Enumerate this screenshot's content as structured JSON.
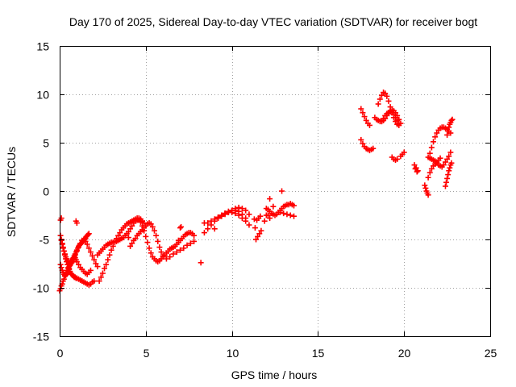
{
  "chart_data": {
    "type": "scatter",
    "title": "Day 170 of 2025, Sidereal Day-to-day VTEC variation (SDTVAR) for receiver bogt",
    "xlabel": "GPS time / hours",
    "ylabel": "SDTVAR / TECUs",
    "xlim": [
      0,
      25
    ],
    "ylim": [
      -15,
      15
    ],
    "xticks": [
      0,
      5,
      10,
      15,
      20,
      25
    ],
    "yticks": [
      -15,
      -10,
      -5,
      0,
      5,
      10,
      15
    ],
    "xtick_labels": [
      "0",
      "5",
      "10",
      "15",
      "20",
      "25"
    ],
    "ytick_labels": [
      "-15",
      "-10",
      "-5",
      "0",
      "5",
      "10",
      "15"
    ],
    "grid": true,
    "marker": "plus",
    "series": [
      {
        "color": "#ff0000",
        "x": [
          0.0,
          0.05,
          0.1,
          0.15,
          0.2,
          0.25,
          0.3,
          0.35,
          0.4,
          0.45,
          0.5,
          0.55,
          0.6,
          0.65,
          0.7,
          0.75,
          0.8,
          0.85,
          0.9,
          0.95,
          1.0,
          1.05,
          1.1,
          1.15,
          1.2,
          1.25,
          1.3,
          1.35,
          1.4,
          1.45,
          1.5,
          1.55,
          1.6,
          1.65,
          1.7,
          0.05,
          0.1,
          0.15,
          0.2,
          0.25,
          0.3,
          0.35,
          0.4,
          0.45,
          0.5,
          0.55,
          0.6,
          0.65,
          0.7,
          0.75,
          0.8,
          0.85,
          0.9,
          0.95,
          1.0,
          1.1,
          1.2,
          1.3,
          1.4,
          1.5,
          1.6,
          1.7,
          1.8,
          1.9,
          2.0,
          0.05,
          0.1,
          0.15,
          0.2,
          0.25,
          0.3,
          0.35,
          0.4,
          0.45,
          0.5,
          0.55,
          0.6,
          0.65,
          0.7,
          0.75,
          0.8,
          0.85,
          0.9,
          0.95,
          1.0,
          1.1,
          1.2,
          1.3,
          1.4,
          1.5,
          1.6,
          1.7,
          1.8,
          0.1,
          0.15,
          0.2,
          0.25,
          0.3,
          0.35,
          0.4,
          0.45,
          0.5,
          0.55,
          0.6,
          0.65,
          0.7,
          0.75,
          0.8,
          0.85,
          0.9,
          1.0,
          1.1,
          1.2,
          1.3,
          1.4,
          1.5,
          1.6,
          1.7,
          1.8,
          1.9,
          2.0,
          2.1,
          2.2,
          0.05,
          0.1,
          0.95,
          1.0,
          2.3,
          2.4,
          2.5,
          2.6,
          2.7,
          2.8,
          2.9,
          3.0,
          3.1,
          3.2,
          3.3,
          3.4,
          3.5,
          3.6,
          3.7,
          3.8,
          3.9,
          4.0,
          4.1,
          4.2,
          4.3,
          4.4,
          4.5,
          4.6,
          4.7,
          4.8,
          4.9,
          2.2,
          2.3,
          2.4,
          2.5,
          2.6,
          2.7,
          2.8,
          2.9,
          3.0,
          3.1,
          3.2,
          3.3,
          3.4,
          3.5,
          3.6,
          3.7,
          3.8,
          3.9,
          4.0,
          4.1,
          4.2,
          4.3,
          4.4,
          4.5,
          4.6,
          4.7,
          4.8,
          4.9,
          5.0,
          5.1,
          5.2,
          5.3,
          5.4,
          5.5,
          5.6,
          5.7,
          5.8,
          5.9,
          6.0,
          6.1,
          6.2,
          6.3,
          6.4,
          6.5,
          6.6,
          6.7,
          6.8,
          6.9,
          7.0,
          7.1,
          7.2,
          7.3,
          7.4,
          7.5,
          7.6,
          7.7,
          7.8,
          4.0,
          4.1,
          4.2,
          4.3,
          4.4,
          4.5,
          4.6,
          4.7,
          4.8,
          4.9,
          5.0,
          5.1,
          5.2,
          5.3,
          5.4,
          5.5,
          5.6,
          5.7,
          5.8,
          5.9,
          6.0,
          6.2,
          6.4,
          6.6,
          6.8,
          7.0,
          7.2,
          7.4,
          7.6,
          7.8,
          6.9,
          7.0,
          7.05,
          8.2,
          8.4,
          8.6,
          8.8,
          9.0,
          9.2,
          9.4,
          9.6,
          9.8,
          10.0,
          10.2,
          10.4,
          10.6,
          10.8,
          8.4,
          8.6,
          8.8,
          9.0,
          9.2,
          9.4,
          9.6,
          9.8,
          10.0,
          10.2,
          10.4,
          10.6,
          10.8,
          11.0,
          9.0,
          9.2,
          9.4,
          9.6,
          9.8,
          10.0,
          10.2,
          10.4,
          10.6,
          10.8,
          11.0,
          11.3,
          11.4,
          11.5,
          11.6,
          11.7,
          11.35,
          11.45,
          11.55,
          11.65,
          12.0,
          12.1,
          12.2,
          11.9,
          12.0,
          12.1,
          12.2,
          12.3,
          12.4,
          12.5,
          12.6,
          12.7,
          12.8,
          12.9,
          13.0,
          13.1,
          13.2,
          13.3,
          13.4,
          13.5,
          13.6,
          12.8,
          13.0,
          13.2,
          13.4,
          13.6,
          12.2,
          12.4,
          12.9,
          17.5,
          17.6,
          17.7,
          17.8,
          17.9,
          18.0,
          17.5,
          17.6,
          17.7,
          17.8,
          17.9,
          18.0,
          18.1,
          18.2,
          18.5,
          18.6,
          18.7,
          18.8,
          18.9,
          19.0,
          19.1,
          19.2,
          19.3,
          19.4,
          19.5,
          19.6,
          19.7,
          18.7,
          18.8,
          18.9,
          19.0,
          19.1,
          19.2,
          19.3,
          19.4,
          19.5,
          19.6,
          19.7,
          18.3,
          18.4,
          18.5,
          18.6,
          18.7,
          18.8,
          18.9,
          19.0,
          19.1,
          19.2,
          19.3,
          19.4,
          19.5,
          19.6,
          19.7,
          19.8,
          19.8,
          19.9,
          20.0,
          19.3,
          19.4,
          19.5,
          19.6,
          20.6,
          20.7,
          20.8,
          20.65,
          20.75,
          21.2,
          21.25,
          21.3,
          21.35,
          21.4,
          21.4,
          21.5,
          21.6,
          21.7,
          21.8,
          21.9,
          22.0,
          22.1,
          21.5,
          21.6,
          21.7,
          21.8,
          21.9,
          22.0,
          22.1,
          22.2,
          22.3,
          22.4,
          22.5,
          22.6,
          22.7,
          21.4,
          21.5,
          21.6,
          21.7,
          21.8,
          21.9,
          22.0,
          22.1,
          22.2,
          22.3,
          22.4,
          22.5,
          22.6,
          22.7,
          22.4,
          22.45,
          22.5,
          22.55,
          22.6,
          22.65,
          22.7,
          22.75,
          22.5,
          22.55,
          22.6,
          22.65,
          22.7,
          22.75,
          22.8
        ],
        "y": [
          -10.3,
          -10.1,
          -9.8,
          -9.6,
          -9.3,
          -9.1,
          -8.8,
          -8.6,
          -8.4,
          -8.2,
          -8.0,
          -7.8,
          -7.6,
          -7.5,
          -7.3,
          -7.1,
          -6.9,
          -6.7,
          -6.5,
          -6.3,
          -6.1,
          -5.9,
          -5.7,
          -5.6,
          -5.5,
          -5.4,
          -5.3,
          -5.2,
          -5.1,
          -5.0,
          -4.9,
          -4.7,
          -4.6,
          -4.5,
          -4.4,
          -4.6,
          -5.0,
          -5.4,
          -5.8,
          -6.2,
          -6.6,
          -7.0,
          -7.3,
          -7.6,
          -7.9,
          -8.1,
          -8.3,
          -8.5,
          -8.6,
          -8.7,
          -8.8,
          -8.9,
          -8.9,
          -9.0,
          -9.0,
          -9.1,
          -9.2,
          -9.3,
          -9.4,
          -9.5,
          -9.6,
          -9.7,
          -9.6,
          -9.4,
          -9.3,
          -7.6,
          -7.9,
          -8.2,
          -8.4,
          -8.6,
          -8.7,
          -8.7,
          -8.6,
          -8.5,
          -8.3,
          -8.0,
          -7.7,
          -7.4,
          -7.2,
          -7.0,
          -6.9,
          -6.8,
          -6.9,
          -7.1,
          -7.3,
          -7.6,
          -7.9,
          -8.1,
          -8.3,
          -8.5,
          -8.6,
          -8.4,
          -8.2,
          -5.1,
          -5.5,
          -5.9,
          -6.2,
          -6.5,
          -6.8,
          -7.0,
          -7.2,
          -7.3,
          -7.4,
          -7.5,
          -7.5,
          -7.4,
          -7.3,
          -7.1,
          -6.9,
          -6.6,
          -6.2,
          -5.8,
          -5.4,
          -5.1,
          -5.0,
          -5.2,
          -5.5,
          -5.9,
          -6.3,
          -6.7,
          -7.1,
          -7.5,
          -7.8,
          -3.0,
          -2.8,
          -3.1,
          -3.3,
          -9.3,
          -8.9,
          -8.5,
          -8.0,
          -7.6,
          -7.1,
          -6.6,
          -6.1,
          -5.7,
          -5.3,
          -4.9,
          -4.6,
          -4.3,
          -4.0,
          -3.8,
          -3.6,
          -3.4,
          -3.3,
          -3.2,
          -3.1,
          -3.0,
          -2.9,
          -2.8,
          -2.8,
          -2.9,
          -3.1,
          -3.3,
          -6.6,
          -6.4,
          -6.2,
          -6.0,
          -5.8,
          -5.6,
          -5.5,
          -5.4,
          -5.3,
          -5.3,
          -5.2,
          -5.2,
          -5.1,
          -5.0,
          -4.9,
          -4.8,
          -4.6,
          -4.4,
          -4.2,
          -3.9,
          -3.6,
          -3.3,
          -3.1,
          -3.0,
          -3.0,
          -3.2,
          -3.6,
          -4.1,
          -4.7,
          -5.3,
          -5.9,
          -6.4,
          -6.8,
          -7.0,
          -7.2,
          -7.3,
          -7.2,
          -7.0,
          -6.8,
          -6.6,
          -6.4,
          -6.2,
          -6.0,
          -5.9,
          -5.8,
          -5.7,
          -5.5,
          -5.3,
          -5.1,
          -4.9,
          -4.7,
          -4.5,
          -4.4,
          -4.3,
          -4.3,
          -4.4,
          -4.6,
          -4.8,
          -5.7,
          -5.4,
          -5.1,
          -4.9,
          -4.6,
          -4.4,
          -4.2,
          -4.0,
          -3.8,
          -3.6,
          -3.4,
          -3.3,
          -3.4,
          -3.7,
          -4.1,
          -4.6,
          -5.2,
          -5.8,
          -6.3,
          -6.7,
          -7.0,
          -6.8,
          -6.5,
          -6.3,
          -6.1,
          -5.9,
          -5.6,
          -5.4,
          -5.2,
          -5.1,
          -3.8,
          -3.7,
          -7.4,
          -4.3,
          -3.9,
          -3.5,
          -3.1,
          -2.8,
          -2.5,
          -2.3,
          -2.1,
          -2.0,
          -2.0,
          -2.1,
          -2.4,
          -2.8,
          -3.3,
          -3.3,
          -3.1,
          -2.9,
          -2.7,
          -2.5,
          -2.3,
          -2.2,
          -2.2,
          -2.3,
          -2.5,
          -2.8,
          -3.1,
          -3.5,
          -3.9,
          -2.8,
          -2.6,
          -2.4,
          -2.2,
          -2.0,
          -1.8,
          -1.7,
          -1.8,
          -2.0,
          -2.4,
          -2.9,
          -5.0,
          -4.7,
          -4.4,
          -4.1,
          -3.8,
          -3.0,
          -2.8,
          -2.6,
          -2.5,
          -2.5,
          -2.8,
          -3.1,
          -1.8,
          -1.9,
          -2.1,
          -2.3,
          -2.4,
          -2.5,
          -2.4,
          -2.2,
          -2.0,
          -1.8,
          -1.6,
          -1.5,
          -1.4,
          -1.4,
          -1.3,
          -1.4,
          -1.5,
          -2.2,
          -2.3,
          -2.4,
          -2.5,
          -2.6,
          -0.8,
          -1.6,
          0.0,
          8.5,
          8.1,
          7.7,
          7.3,
          7.0,
          6.8,
          5.3,
          4.9,
          4.6,
          4.4,
          4.3,
          4.2,
          4.3,
          4.4,
          9.0,
          9.5,
          9.9,
          10.2,
          10.1,
          9.8,
          9.3,
          8.7,
          8.1,
          7.6,
          7.2,
          6.9,
          6.8,
          7.2,
          7.5,
          7.8,
          8.0,
          8.1,
          8.2,
          8.1,
          7.9,
          7.6,
          7.3,
          7.0,
          7.6,
          7.4,
          7.3,
          7.2,
          7.2,
          7.3,
          7.5,
          7.8,
          8.1,
          8.3,
          8.4,
          8.3,
          8.1,
          7.8,
          7.4,
          7.0,
          3.6,
          3.8,
          4.0,
          3.5,
          3.3,
          3.2,
          3.3,
          2.7,
          2.4,
          2.1,
          2.3,
          2.0,
          0.6,
          0.3,
          0.0,
          -0.2,
          -0.4,
          1.4,
          1.9,
          2.3,
          2.6,
          2.8,
          3.0,
          3.2,
          3.4,
          3.9,
          4.5,
          5.1,
          5.6,
          6.0,
          6.3,
          6.5,
          6.6,
          6.6,
          6.5,
          6.4,
          6.2,
          6.0,
          3.5,
          3.4,
          3.3,
          3.2,
          3.1,
          2.9,
          2.7,
          2.6,
          2.5,
          2.7,
          3.0,
          3.3,
          3.6,
          4.0,
          0.5,
          0.9,
          1.3,
          1.7,
          2.1,
          2.4,
          2.7,
          2.9,
          5.8,
          6.2,
          6.6,
          6.9,
          7.1,
          7.3,
          7.4
        ]
      }
    ]
  }
}
